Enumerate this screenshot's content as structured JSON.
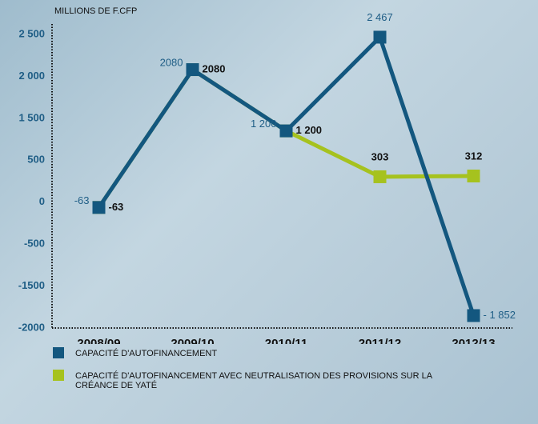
{
  "chart_data": {
    "type": "line",
    "y_axis_label": "MILLIONS DE F.CFP",
    "categories": [
      "2008/09",
      "2009/10",
      "2010/11",
      "2011/12",
      "2012/13"
    ],
    "series": [
      {
        "name": "CAPACITÉ D'AUTOFINANCEMENT AVEC NEUTRALISATION DES PROVISIONS SUR LA CRÉANCE DE YATÉ",
        "color": "#a6c21e",
        "values": [
          -63,
          2080,
          1200,
          303,
          312
        ],
        "value_labels": [
          "-63",
          "2080",
          "1 200",
          "303",
          "312"
        ]
      },
      {
        "name": "CAPACITÉ D'AUTOFINANCEMENT",
        "color": "#13577f",
        "values": [
          -63,
          2080,
          1200,
          2467,
          -1852
        ],
        "value_labels": [
          "-63",
          "2080",
          "1 200",
          "2 467",
          "- 1 852"
        ]
      }
    ],
    "ylim": [
      -2000,
      2500
    ],
    "yticks": [
      -2000,
      -1500,
      -500,
      0,
      500,
      {
        "value": 1500,
        "label": "1 500"
      },
      {
        "value": 2000,
        "label": "2 000"
      },
      {
        "value": 2500,
        "label": "2 500"
      }
    ]
  }
}
